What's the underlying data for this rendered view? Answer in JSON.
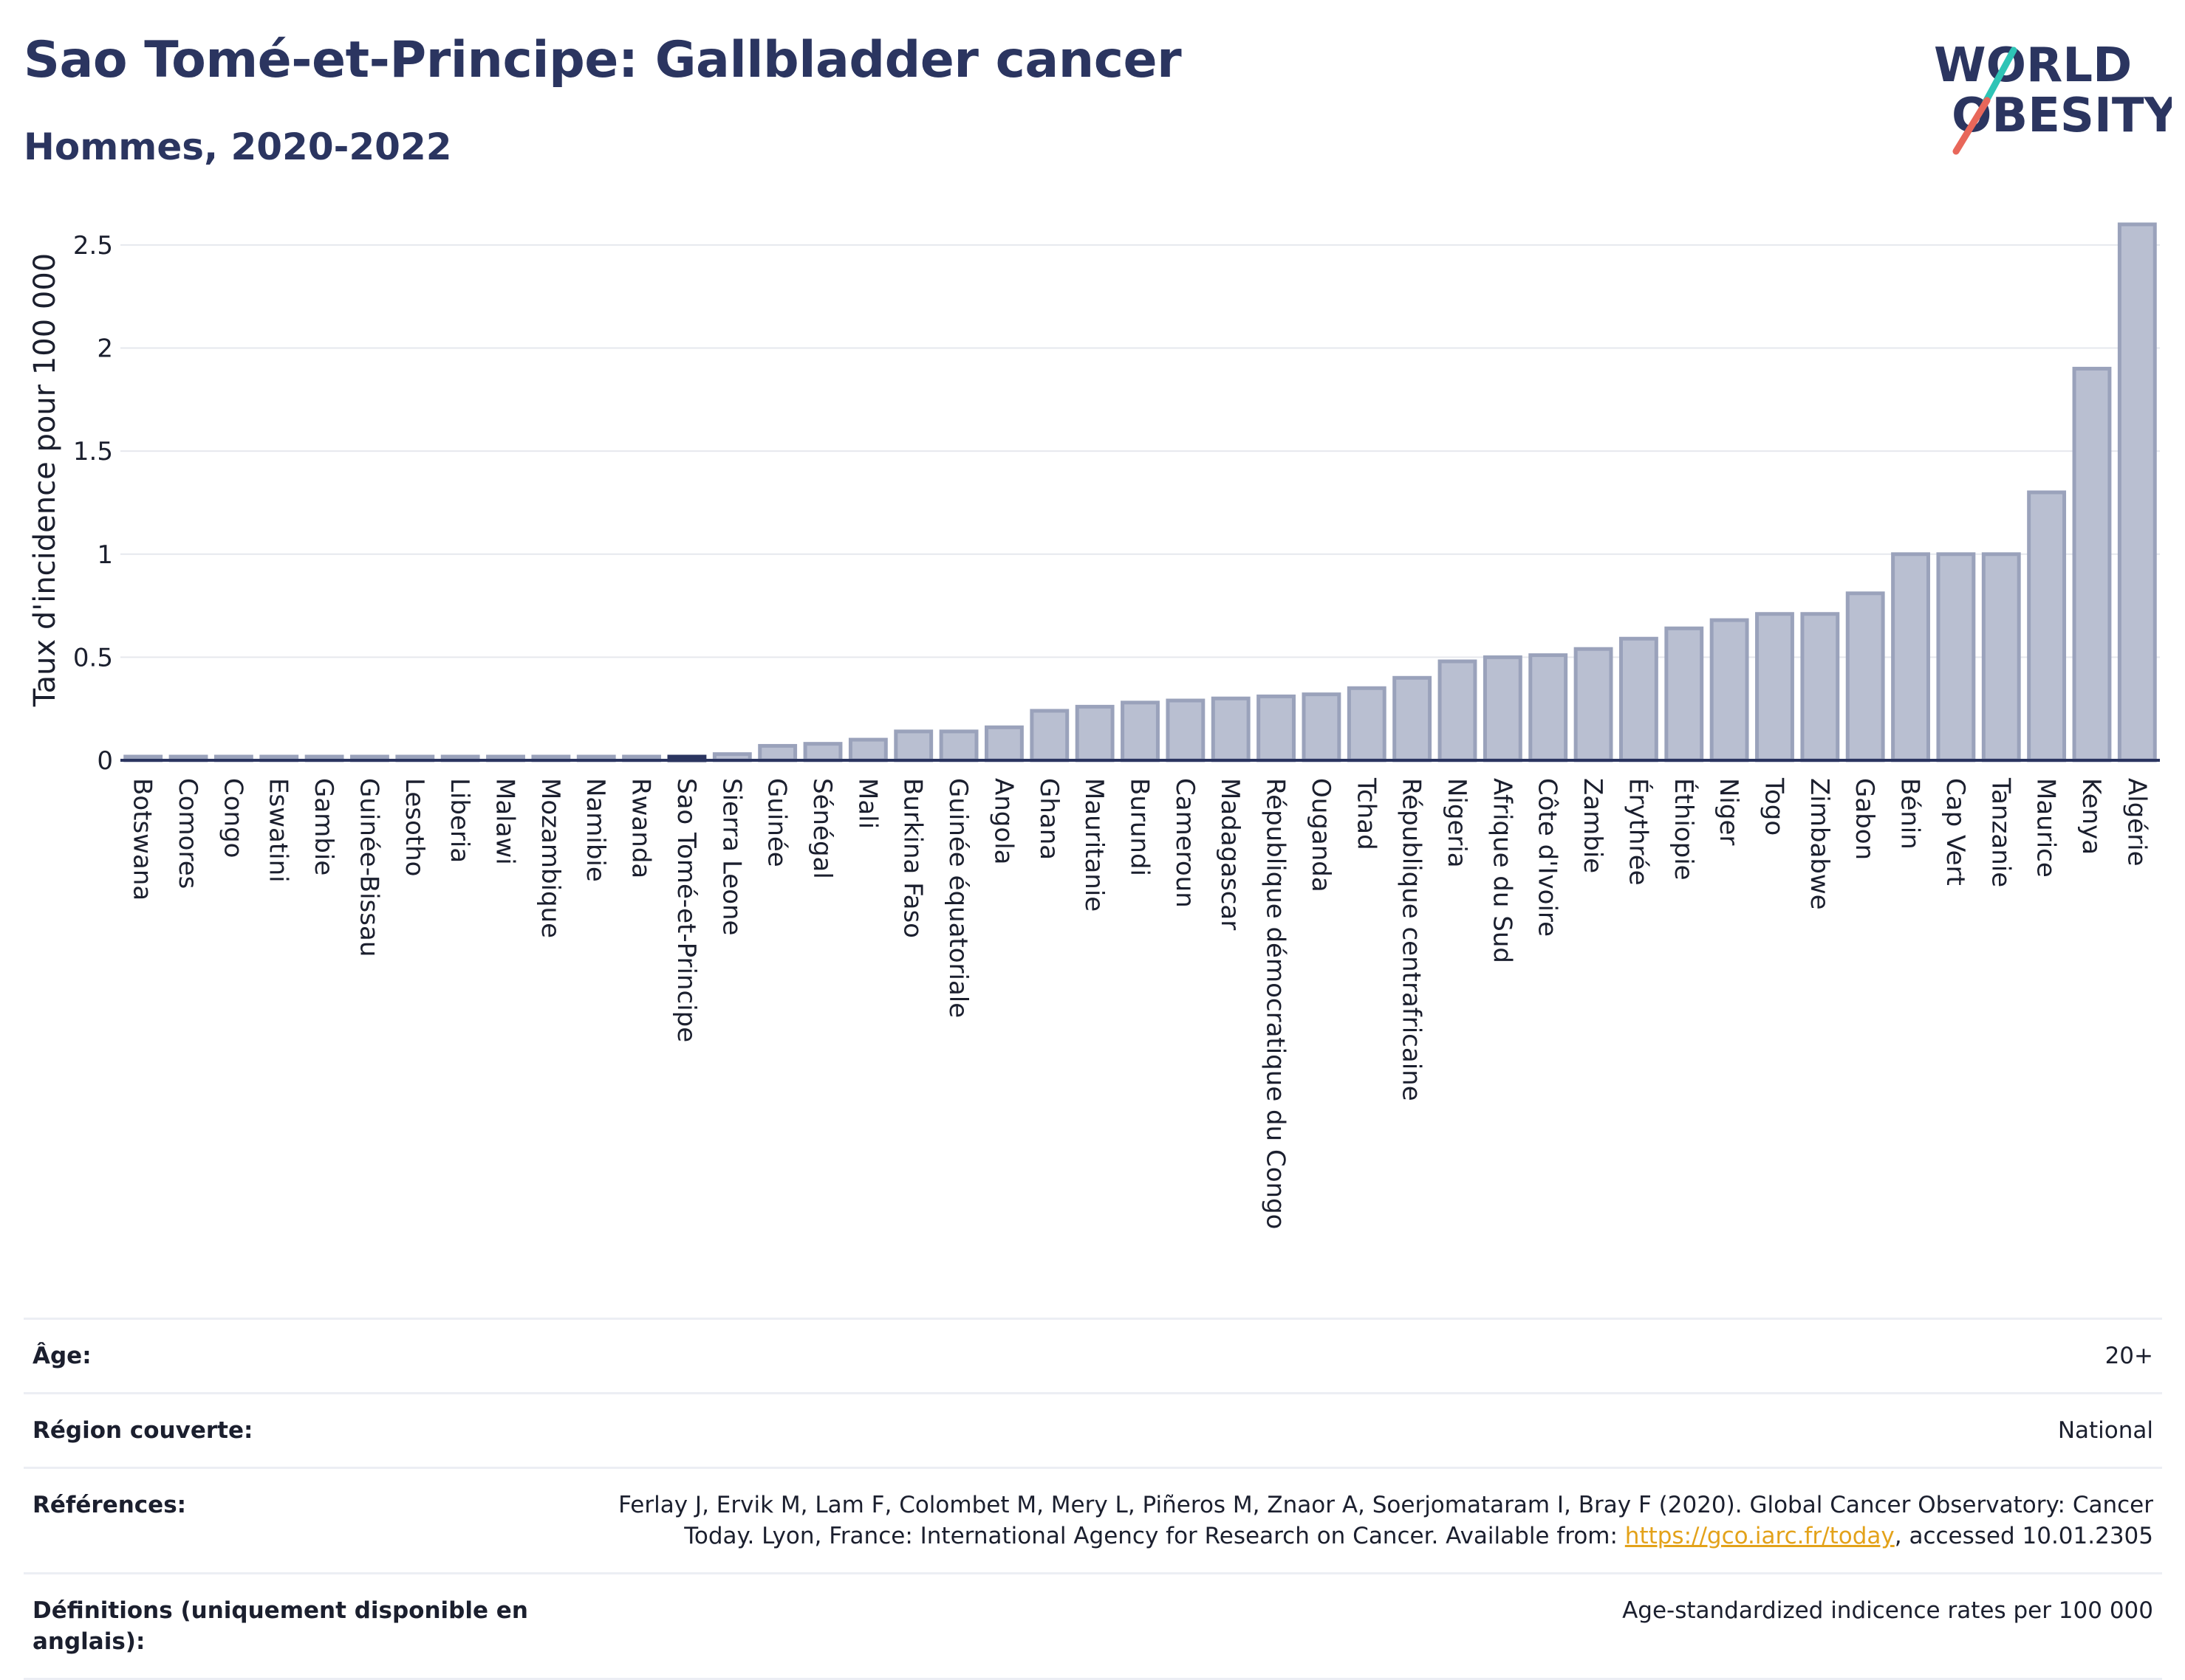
{
  "title": "Sao Tomé-et-Principe: Gallbladder cancer",
  "subtitle": "Hommes, 2020-2022",
  "logo": {
    "line1": "WORLD",
    "line2": "OBESITY",
    "colors": [
      "#2b3560",
      "#e8675a",
      "#2ec4b6"
    ]
  },
  "colors": {
    "bar_fill": "#b9bfd1",
    "bar_stroke": "#9aa2bb",
    "highlight": "#2b3560",
    "axis": "#2b3560",
    "grid": "#e6e8ee"
  },
  "chart_data": {
    "type": "bar",
    "ylabel": "Taux d'incidence pour 100 000",
    "xlabel": "",
    "ylim": [
      0,
      2.65
    ],
    "yticks": [
      0,
      0.5,
      1,
      1.5,
      2,
      2.5
    ],
    "ytick_labels": [
      "0",
      "0.5",
      "1",
      "1.5",
      "2",
      "2.5"
    ],
    "highlight": "Sao Tomé-et-Principe",
    "categories": [
      "Botswana",
      "Comores",
      "Congo",
      "Eswatini",
      "Gambie",
      "Guinée-Bissau",
      "Lesotho",
      "Liberia",
      "Malawi",
      "Mozambique",
      "Namibie",
      "Rwanda",
      "Sao Tomé-et-Principe",
      "Sierra Leone",
      "Guinée",
      "Sénégal",
      "Mali",
      "Burkina Faso",
      "Guinée équatoriale",
      "Angola",
      "Ghana",
      "Mauritanie",
      "Burundi",
      "Cameroun",
      "Madagascar",
      "République démocratique du Congo",
      "Ouganda",
      "Tchad",
      "République centrafricaine",
      "Nigeria",
      "Afrique du Sud",
      "Côte d'Ivoire",
      "Zambie",
      "Érythrée",
      "Éthiopie",
      "Niger",
      "Togo",
      "Zimbabwe",
      "Gabon",
      "Bénin",
      "Cap Vert",
      "Tanzanie",
      "Maurice",
      "Kenya",
      "Algérie"
    ],
    "values": [
      0,
      0,
      0,
      0,
      0,
      0,
      0,
      0,
      0,
      0,
      0,
      0,
      0,
      0.03,
      0.07,
      0.08,
      0.1,
      0.14,
      0.14,
      0.16,
      0.24,
      0.26,
      0.28,
      0.29,
      0.3,
      0.31,
      0.32,
      0.35,
      0.4,
      0.48,
      0.5,
      0.51,
      0.54,
      0.59,
      0.64,
      0.68,
      0.71,
      0.71,
      0.81,
      1.0,
      1.0,
      1.0,
      1.3,
      1.9,
      2.6
    ]
  },
  "info": {
    "age_label": "Âge:",
    "age_value": "20+",
    "region_label": "Région couverte:",
    "region_value": "National",
    "refs_label": "Références:",
    "refs_text1": "Ferlay J, Ervik M, Lam F, Colombet M, Mery L, Piñeros M, Znaor A, Soerjomataram I, Bray F (2020). Global Cancer Observatory: Cancer",
    "refs_text2": "Today. Lyon, France: International Agency for Research on Cancer. Available from: ",
    "refs_link": "https://gco.iarc.fr/today",
    "refs_text3": ", accessed 10.01.2305",
    "defs_label": "Définitions (uniquement disponible en anglais):",
    "defs_value": "Age-standardized indicence rates per 100 000"
  }
}
